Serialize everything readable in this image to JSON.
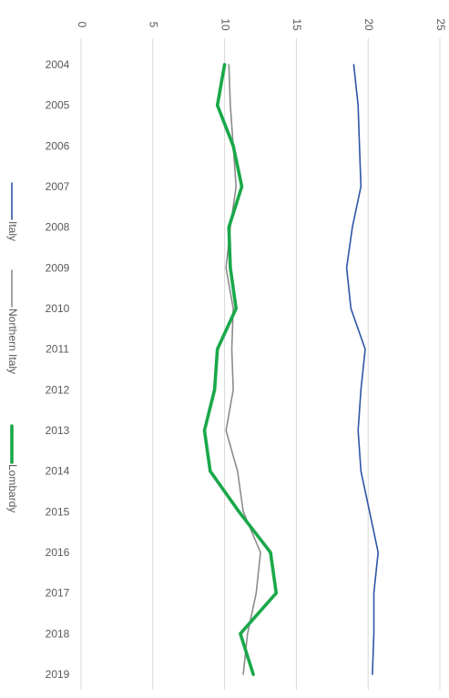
{
  "chart_data": {
    "type": "line",
    "orientation": "rotated-90-clockwise",
    "title": "",
    "xlabel": "",
    "ylabel": "",
    "categories": [
      "2004",
      "2005",
      "2006",
      "2007",
      "2008",
      "2009",
      "2010",
      "2011",
      "2012",
      "2013",
      "2014",
      "2015",
      "2016",
      "2017",
      "2018",
      "2019"
    ],
    "ylim": [
      0,
      25
    ],
    "yticks": [
      "0",
      "5",
      "10",
      "15",
      "20",
      "25"
    ],
    "grid": true,
    "legend_position": "left",
    "series": [
      {
        "name": "Italy",
        "color": "#2e55a5",
        "values": [
          19.0,
          19.3,
          19.4,
          19.5,
          18.9,
          18.5,
          18.8,
          19.8,
          19.5,
          19.3,
          19.5,
          20.1,
          20.7,
          20.4,
          20.4,
          20.3
        ]
      },
      {
        "name": "Northern Italy",
        "color": "#8c8c8c",
        "values": [
          10.3,
          10.4,
          10.6,
          10.8,
          10.4,
          10.1,
          10.6,
          10.5,
          10.6,
          10.1,
          10.9,
          11.3,
          12.5,
          12.2,
          11.6,
          11.3
        ]
      },
      {
        "name": "Lombardy",
        "color": "#1aa84a",
        "values": [
          10.0,
          9.5,
          10.6,
          11.2,
          10.3,
          10.4,
          10.8,
          9.5,
          9.3,
          8.6,
          9.0,
          11.0,
          13.2,
          13.6,
          11.1,
          12.0
        ]
      }
    ]
  }
}
